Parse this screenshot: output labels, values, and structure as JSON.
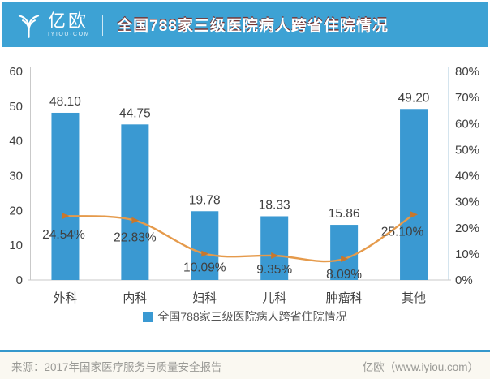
{
  "header": {
    "logo_text": "亿欧",
    "logo_subtext": "IYIOU·COM",
    "title": "全国788家三级医院病人跨省住院情况"
  },
  "chart_data": {
    "type": "bar",
    "title": "全国788家三级医院病人跨省住院情况",
    "categories": [
      "外科",
      "内科",
      "妇科",
      "儿科",
      "肿瘤科",
      "其他"
    ],
    "series": [
      {
        "name": "全国788家三级医院病人跨省住院情况",
        "type": "bar",
        "axis": "left",
        "color": "#3a99d2",
        "values": [
          48.1,
          44.75,
          19.78,
          18.33,
          15.86,
          49.2
        ],
        "labels": [
          "48.10",
          "44.75",
          "19.78",
          "18.33",
          "15.86",
          "49.20"
        ]
      },
      {
        "type": "line",
        "axis": "right",
        "color": "#e59a4b",
        "marker_color": "#c8772b",
        "values": [
          24.54,
          22.83,
          10.09,
          9.35,
          8.09,
          25.1
        ],
        "labels": [
          "24.54%",
          "22.83%",
          "10.09%",
          "9.35%",
          "8.09%",
          "25.10%"
        ]
      }
    ],
    "left_axis": {
      "min": 0,
      "max": 60,
      "ticks": [
        "0",
        "10",
        "20",
        "30",
        "40",
        "50",
        "60"
      ]
    },
    "right_axis": {
      "min": 0,
      "max": 80,
      "ticks": [
        "0%",
        "10%",
        "20%",
        "30%",
        "40%",
        "50%",
        "60%",
        "70%",
        "80%"
      ]
    },
    "legend": {
      "position": "bottom",
      "entries": [
        {
          "label": "全国788家三级医院病人跨省住院情况",
          "color": "#3a99d2"
        }
      ]
    },
    "grid": false
  },
  "footer": {
    "source": "来源：2017年国家医疗服务与质量安全报告",
    "brand": "亿欧（www.iyiou.com）"
  },
  "colors": {
    "header_bg": "#3da2d4",
    "bar": "#3a99d2",
    "line": "#e59a4b",
    "marker": "#c8772b",
    "label_text": "#404040",
    "axis_line": "#c9c9c9",
    "right_axis_line": "#aac9de",
    "footer_bg": "#faf8f1",
    "footer_text": "#9a9a96",
    "divider_line": "#3598cc"
  }
}
